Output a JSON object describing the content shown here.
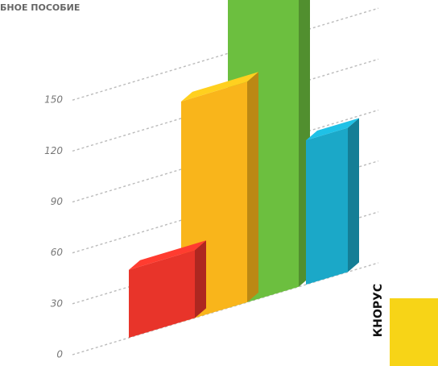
{
  "chart_data": {
    "type": "bar",
    "title": "БНОЕ ПОСОБИЕ",
    "publisher": "КНОРУС",
    "categories": [
      null,
      null,
      null,
      null
    ],
    "values": [
      40,
      130,
      185,
      85
    ],
    "colors": [
      "#e8342a",
      "#f9b51b",
      "#6cbf3f",
      "#1ba8c8"
    ],
    "ylim": [
      0,
      190
    ],
    "yticks": [
      0,
      30,
      60,
      90,
      120,
      150
    ],
    "grid": true
  }
}
